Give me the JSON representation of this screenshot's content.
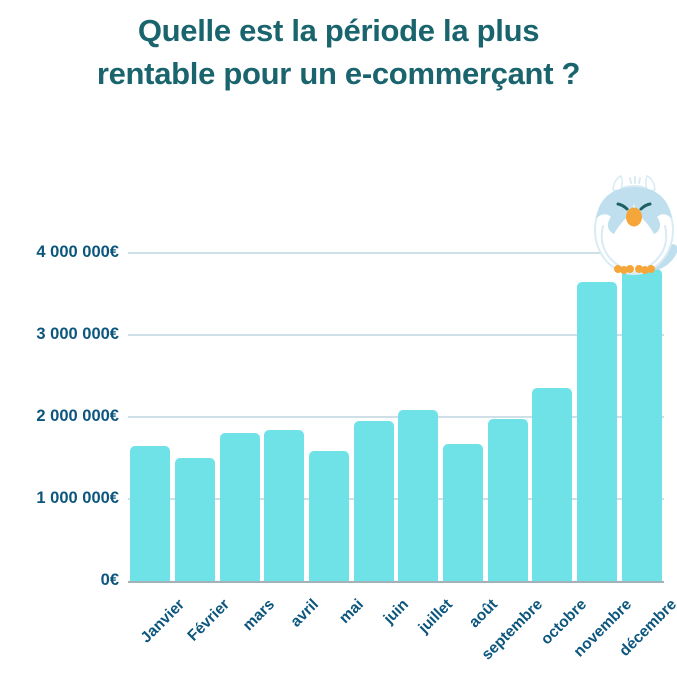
{
  "title": {
    "line1": "Quelle est la période la plus",
    "line2": "rentable pour un e-commerçant ?"
  },
  "chart_data": {
    "type": "bar",
    "categories": [
      "Janvier",
      "Février",
      "mars",
      "avril",
      "mai",
      "juin",
      "juillet",
      "août",
      "septembre",
      "octobre",
      "novembre",
      "décembre"
    ],
    "values": [
      1650000,
      1500000,
      1800000,
      1840000,
      1590000,
      1950000,
      2090000,
      1670000,
      1980000,
      2350000,
      3650000,
      3810000
    ],
    "title": "Quelle est la période la plus rentable pour un e-commerçant ?",
    "xlabel": "",
    "ylabel": "",
    "ylim": [
      0,
      4000000
    ],
    "y_ticks": [
      {
        "value": 0,
        "label": "0€"
      },
      {
        "value": 1000000,
        "label": "1 000 000€"
      },
      {
        "value": 2000000,
        "label": "2 000 000€"
      },
      {
        "value": 3000000,
        "label": "3 000 000€"
      },
      {
        "value": 4000000,
        "label": "4 000 000€"
      }
    ],
    "grid": true,
    "legend": false,
    "bar_color": "#6fe2e8",
    "grid_color": "#cfdfe8",
    "axis_color": "#a3b1b8",
    "label_color": "#0c567e",
    "title_color": "#19646d"
  },
  "mascot": {
    "name": "owl sitting on december bar",
    "body_color": "#ffffff",
    "wing_color": "#bfdfee",
    "beak_color": "#f5a63a",
    "feet_color": "#f5a63a",
    "eye_color": "#1c5f66"
  }
}
